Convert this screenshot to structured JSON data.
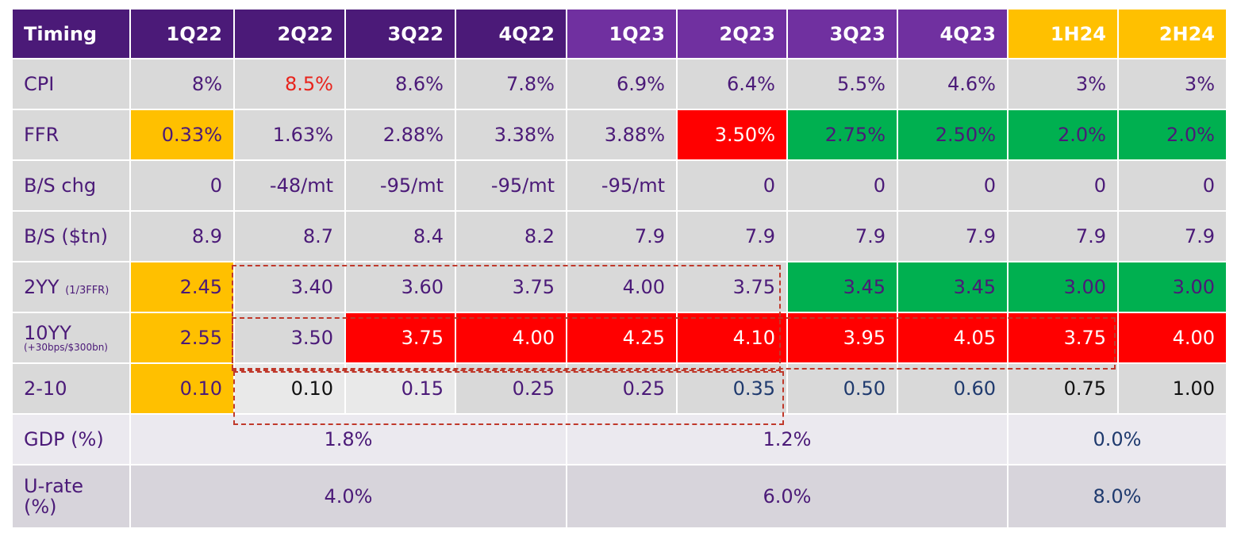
{
  "header": {
    "label": "Timing",
    "periods": [
      "1Q22",
      "2Q22",
      "3Q22",
      "4Q22",
      "1Q23",
      "2Q23",
      "3Q23",
      "4Q23",
      "1H24",
      "2H24"
    ]
  },
  "rows": {
    "cpi": {
      "label": "CPI",
      "values": [
        "8%",
        "8.5%",
        "8.6%",
        "7.8%",
        "6.9%",
        "6.4%",
        "5.5%",
        "4.6%",
        "3%",
        "3%"
      ]
    },
    "ffr": {
      "label": "FFR",
      "values": [
        "0.33%",
        "1.63%",
        "2.88%",
        "3.38%",
        "3.88%",
        "3.50%",
        "2.75%",
        "2.50%",
        "2.0%",
        "2.0%"
      ]
    },
    "bs_chg": {
      "label": "B/S chg",
      "values": [
        "0",
        "-48/mt",
        "-95/mt",
        "-95/mt",
        "-95/mt",
        "0",
        "0",
        "0",
        "0",
        "0"
      ]
    },
    "bs_tn": {
      "label": "B/S ($tn)",
      "values": [
        "8.9",
        "8.7",
        "8.4",
        "8.2",
        "7.9",
        "7.9",
        "7.9",
        "7.9",
        "7.9",
        "7.9"
      ]
    },
    "yy2": {
      "label": "2YY",
      "note": "(1/3FFR)",
      "values": [
        "2.45",
        "3.40",
        "3.60",
        "3.75",
        "4.00",
        "3.75",
        "3.45",
        "3.45",
        "3.00",
        "3.00"
      ]
    },
    "yy10": {
      "label": "10YY",
      "note": "(+30bps/$300bn)",
      "values": [
        "2.55",
        "3.50",
        "3.75",
        "4.00",
        "4.25",
        "4.10",
        "3.95",
        "4.05",
        "3.75",
        "4.00"
      ]
    },
    "spread": {
      "label": "2-10",
      "values": [
        "0.10",
        "0.10",
        "0.15",
        "0.25",
        "0.25",
        "0.35",
        "0.50",
        "0.60",
        "0.75",
        "1.00"
      ]
    },
    "gdp": {
      "label": "GDP (%)",
      "values": [
        "1.8%",
        "1.2%",
        "0.0%"
      ]
    },
    "urate": {
      "label_line1": "U-rate",
      "label_line2": "(%)",
      "values": [
        "4.0%",
        "6.0%",
        "8.0%"
      ]
    }
  },
  "colors": {
    "header_dark": "#4b1a78",
    "header_light": "#7030a0",
    "header_gold": "#ffc000",
    "highlight_red": "#ff0000",
    "highlight_green": "#00b050",
    "highlight_gold": "#ffc000",
    "cell_grey": "#d9d9d9"
  }
}
